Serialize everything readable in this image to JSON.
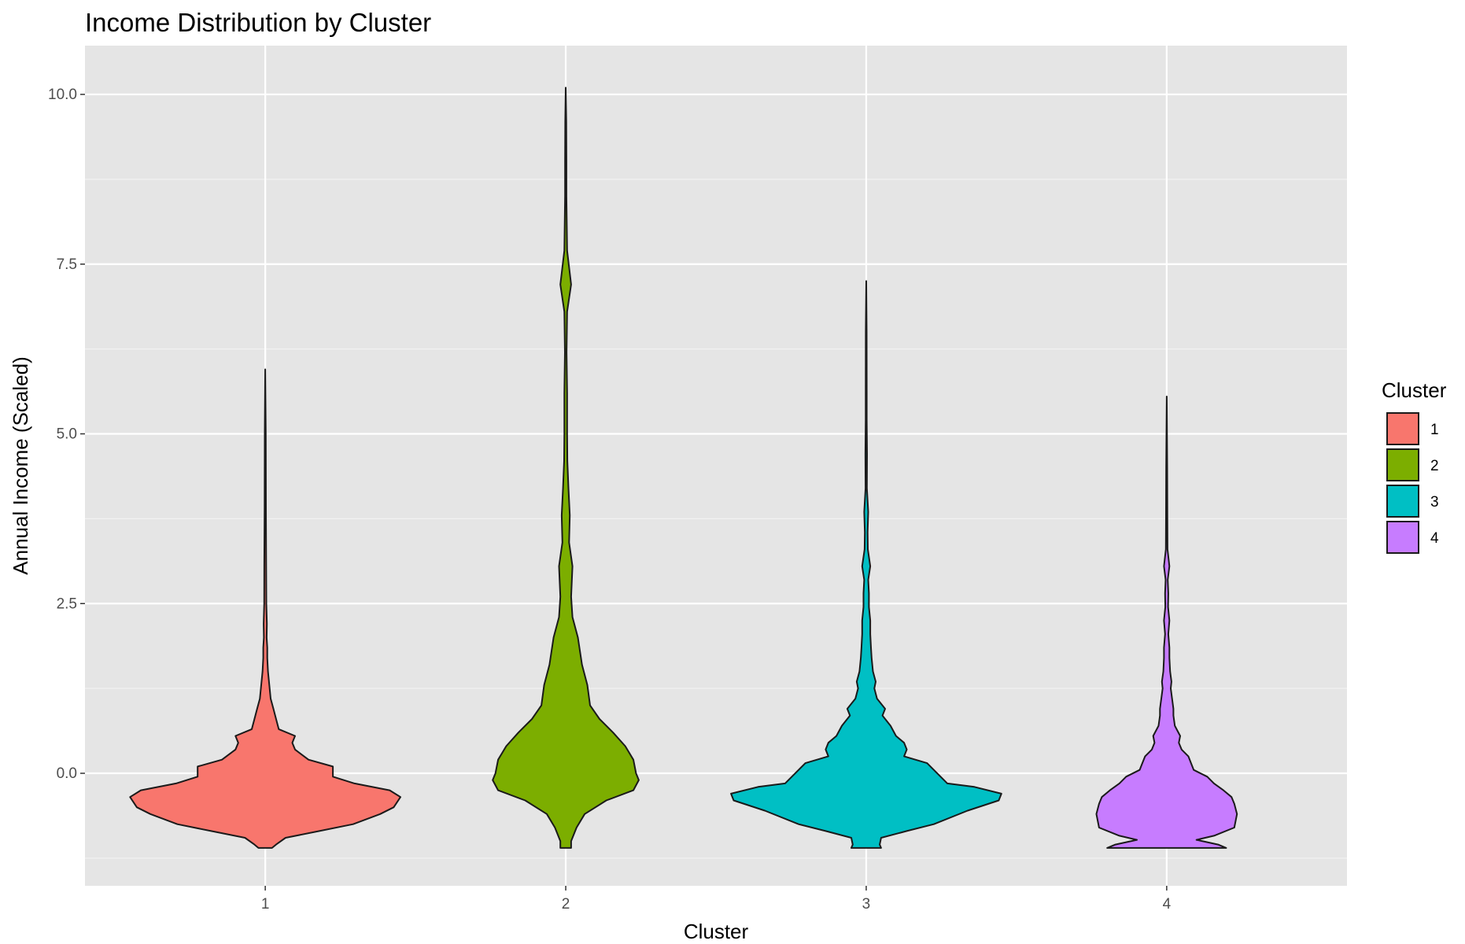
{
  "chart_data": {
    "type": "violin",
    "title": "Income Distribution by Cluster",
    "xlabel": "Cluster",
    "ylabel": "Annual Income (Scaled)",
    "categories": [
      "1",
      "2",
      "3",
      "4"
    ],
    "y_ticks": [
      0.0,
      2.5,
      5.0,
      7.5,
      10.0
    ],
    "y_tick_labels": [
      "0.0",
      "2.5",
      "5.0",
      "7.5",
      "10.0"
    ],
    "ylim": [
      -1.6,
      10.7
    ],
    "grid": true,
    "legend": {
      "title": "Cluster",
      "placement": "right",
      "entries": [
        "1",
        "2",
        "3",
        "4"
      ]
    },
    "colors": [
      "#F8766D",
      "#7CAE00",
      "#00BFC4",
      "#C77CFF"
    ],
    "series": [
      {
        "name": "1",
        "profile": [
          [
            -1.1,
            0.05
          ],
          [
            -1.05,
            0.08
          ],
          [
            -0.95,
            0.15
          ],
          [
            -0.85,
            0.4
          ],
          [
            -0.75,
            0.65
          ],
          [
            -0.6,
            0.85
          ],
          [
            -0.5,
            0.95
          ],
          [
            -0.35,
            1.0
          ],
          [
            -0.25,
            0.92
          ],
          [
            -0.15,
            0.66
          ],
          [
            -0.05,
            0.5
          ],
          [
            0.1,
            0.5
          ],
          [
            0.2,
            0.32
          ],
          [
            0.35,
            0.22
          ],
          [
            0.45,
            0.2
          ],
          [
            0.55,
            0.22
          ],
          [
            0.65,
            0.1
          ],
          [
            0.8,
            0.08
          ],
          [
            0.95,
            0.06
          ],
          [
            1.1,
            0.04
          ],
          [
            1.3,
            0.03
          ],
          [
            1.5,
            0.02
          ],
          [
            1.7,
            0.015
          ],
          [
            1.85,
            0.015
          ],
          [
            2.0,
            0.01
          ],
          [
            2.2,
            0.012
          ],
          [
            2.5,
            0.008
          ],
          [
            3.05,
            0.007
          ],
          [
            3.9,
            0.005
          ],
          [
            5.0,
            0.004
          ],
          [
            5.95,
            0.0
          ]
        ]
      },
      {
        "name": "2",
        "profile": [
          [
            -1.1,
            0.04
          ],
          [
            -1.0,
            0.04
          ],
          [
            -0.8,
            0.08
          ],
          [
            -0.6,
            0.14
          ],
          [
            -0.4,
            0.3
          ],
          [
            -0.25,
            0.5
          ],
          [
            -0.1,
            0.54
          ],
          [
            0.0,
            0.52
          ],
          [
            0.2,
            0.5
          ],
          [
            0.4,
            0.44
          ],
          [
            0.6,
            0.35
          ],
          [
            0.8,
            0.25
          ],
          [
            1.0,
            0.18
          ],
          [
            1.3,
            0.16
          ],
          [
            1.6,
            0.12
          ],
          [
            2.0,
            0.09
          ],
          [
            2.3,
            0.05
          ],
          [
            2.6,
            0.04
          ],
          [
            3.05,
            0.05
          ],
          [
            3.4,
            0.025
          ],
          [
            3.8,
            0.03
          ],
          [
            4.2,
            0.02
          ],
          [
            4.6,
            0.012
          ],
          [
            5.0,
            0.01
          ],
          [
            5.6,
            0.01
          ],
          [
            6.2,
            0.006
          ],
          [
            6.8,
            0.01
          ],
          [
            7.2,
            0.04
          ],
          [
            7.7,
            0.01
          ],
          [
            8.5,
            0.005
          ],
          [
            9.0,
            0.005
          ],
          [
            9.6,
            0.004
          ],
          [
            10.1,
            0.0
          ]
        ]
      },
      {
        "name": "3",
        "profile": [
          [
            -1.1,
            0.11
          ],
          [
            -1.05,
            0.1
          ],
          [
            -0.95,
            0.11
          ],
          [
            -0.85,
            0.3
          ],
          [
            -0.75,
            0.5
          ],
          [
            -0.55,
            0.75
          ],
          [
            -0.4,
            0.98
          ],
          [
            -0.3,
            1.0
          ],
          [
            -0.2,
            0.8
          ],
          [
            -0.15,
            0.6
          ],
          [
            -0.05,
            0.55
          ],
          [
            0.05,
            0.5
          ],
          [
            0.15,
            0.45
          ],
          [
            0.25,
            0.28
          ],
          [
            0.35,
            0.3
          ],
          [
            0.45,
            0.28
          ],
          [
            0.55,
            0.22
          ],
          [
            0.7,
            0.18
          ],
          [
            0.85,
            0.12
          ],
          [
            0.95,
            0.14
          ],
          [
            1.1,
            0.08
          ],
          [
            1.25,
            0.06
          ],
          [
            1.35,
            0.07
          ],
          [
            1.5,
            0.05
          ],
          [
            1.7,
            0.04
          ],
          [
            1.85,
            0.035
          ],
          [
            2.05,
            0.03
          ],
          [
            2.25,
            0.03
          ],
          [
            2.45,
            0.02
          ],
          [
            2.65,
            0.02
          ],
          [
            2.85,
            0.015
          ],
          [
            3.05,
            0.03
          ],
          [
            3.3,
            0.012
          ],
          [
            3.55,
            0.01
          ],
          [
            3.85,
            0.015
          ],
          [
            4.2,
            0.005
          ],
          [
            4.7,
            0.006
          ],
          [
            5.2,
            0.004
          ],
          [
            5.6,
            0.004
          ],
          [
            6.5,
            0.003
          ],
          [
            7.25,
            0.0
          ]
        ]
      },
      {
        "name": "4",
        "profile": [
          [
            -1.1,
            0.44
          ],
          [
            -1.05,
            0.38
          ],
          [
            -0.98,
            0.22
          ],
          [
            -0.92,
            0.35
          ],
          [
            -0.8,
            0.5
          ],
          [
            -0.6,
            0.52
          ],
          [
            -0.45,
            0.5
          ],
          [
            -0.35,
            0.48
          ],
          [
            -0.25,
            0.42
          ],
          [
            -0.15,
            0.35
          ],
          [
            -0.05,
            0.3
          ],
          [
            0.05,
            0.2
          ],
          [
            0.15,
            0.18
          ],
          [
            0.25,
            0.16
          ],
          [
            0.35,
            0.11
          ],
          [
            0.45,
            0.09
          ],
          [
            0.55,
            0.1
          ],
          [
            0.7,
            0.06
          ],
          [
            0.85,
            0.05
          ],
          [
            0.95,
            0.05
          ],
          [
            1.1,
            0.04
          ],
          [
            1.25,
            0.03
          ],
          [
            1.35,
            0.035
          ],
          [
            1.5,
            0.025
          ],
          [
            1.7,
            0.02
          ],
          [
            1.85,
            0.02
          ],
          [
            2.05,
            0.012
          ],
          [
            2.25,
            0.02
          ],
          [
            2.45,
            0.01
          ],
          [
            2.65,
            0.012
          ],
          [
            2.85,
            0.008
          ],
          [
            3.05,
            0.02
          ],
          [
            3.3,
            0.006
          ],
          [
            3.8,
            0.005
          ],
          [
            4.5,
            0.004
          ],
          [
            5.55,
            0.0
          ]
        ]
      }
    ]
  }
}
